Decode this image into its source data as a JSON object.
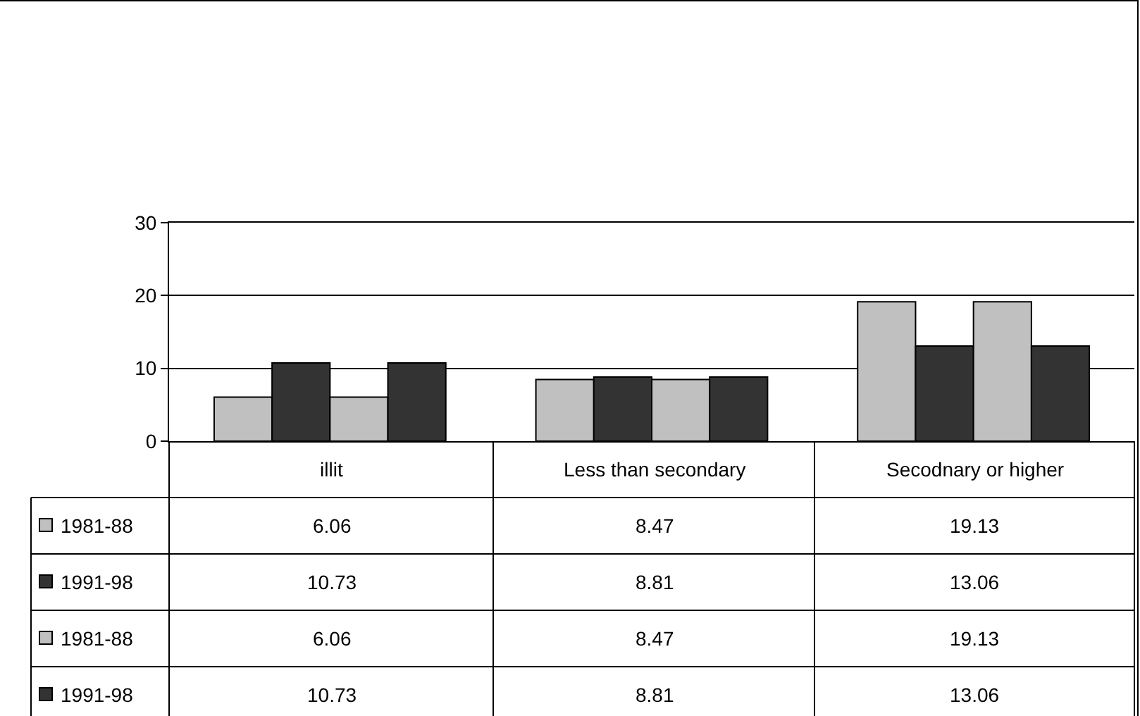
{
  "chart_data": {
    "type": "bar",
    "categories": [
      "illit",
      "Less than secondary",
      "Secodnary or higher"
    ],
    "series": [
      {
        "name": "1981-88",
        "color": "#c0c0c0",
        "values": [
          6.06,
          8.47,
          19.13
        ]
      },
      {
        "name": "1991-98",
        "color": "#333333",
        "values": [
          10.73,
          8.81,
          13.06
        ]
      },
      {
        "name": "1981-88",
        "color": "#c0c0c0",
        "values": [
          6.06,
          8.47,
          19.13
        ]
      },
      {
        "name": "1991-98",
        "color": "#333333",
        "values": [
          10.73,
          8.81,
          13.06
        ]
      }
    ],
    "ylim": [
      0,
      30
    ],
    "yticks": [
      0,
      10,
      20,
      30
    ],
    "grid": "y",
    "data_labels": true,
    "legend": "bottom left"
  }
}
